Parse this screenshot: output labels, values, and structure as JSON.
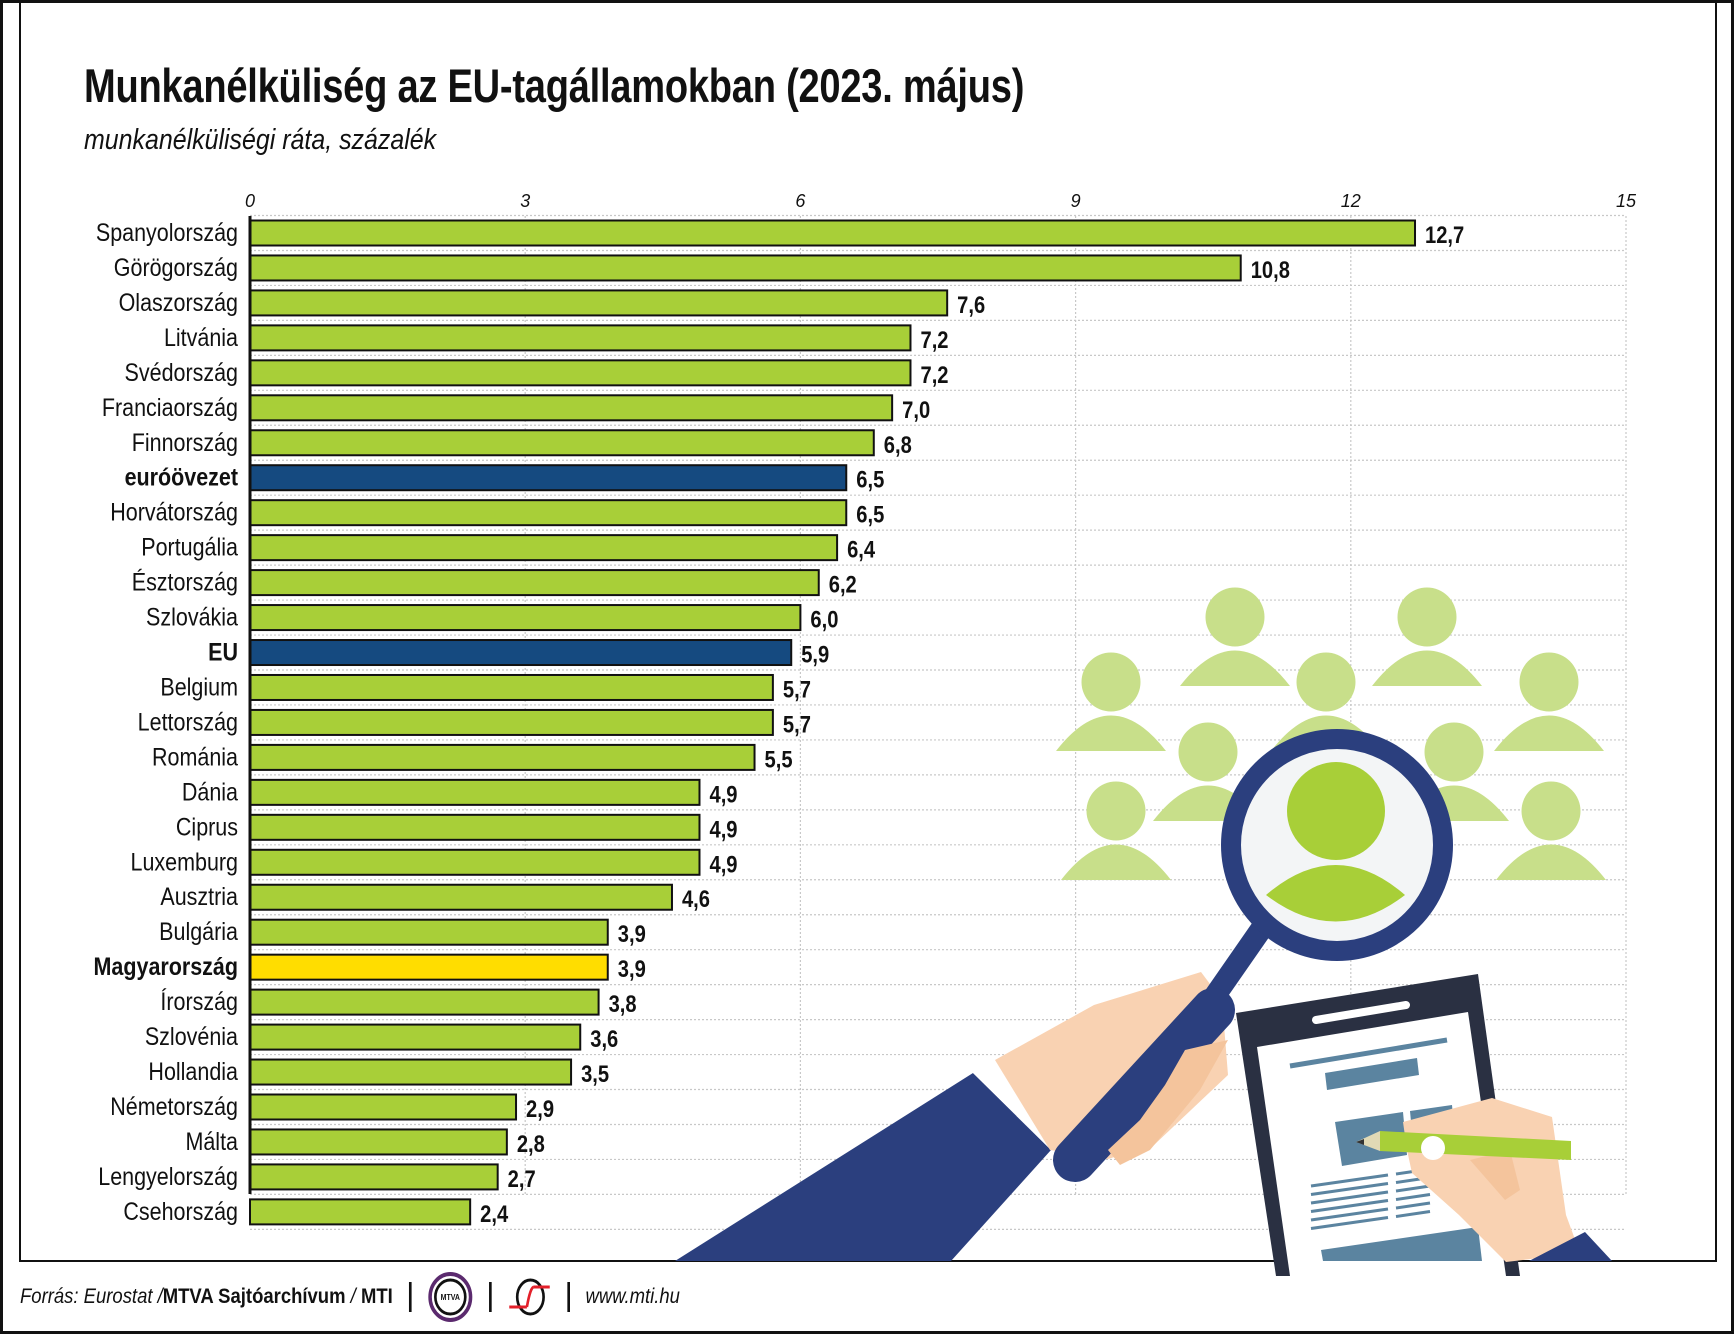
{
  "header": {
    "title": "Munkanélküliség az EU-tagállamokban (2023. május)",
    "subtitle": "munkanélküliségi ráta, százalék"
  },
  "chart_data": {
    "type": "bar",
    "orientation": "horizontal",
    "title": "Munkanélküliség az EU-tagállamokban (2023. május)",
    "subtitle": "munkanélküliségi ráta, százalék",
    "xlim": [
      0,
      15
    ],
    "xticks": [
      "0",
      "3",
      "6",
      "9",
      "12",
      "15"
    ],
    "xtick_values": [
      0,
      3,
      6,
      9,
      12,
      15
    ],
    "grid": true,
    "categories": [
      "Spanyolország",
      "Görögország",
      "Olaszország",
      "Litvánia",
      "Svédország",
      "Franciaország",
      "Finnország",
      "euróövezet",
      "Horvátország",
      "Portugália",
      "Észtország",
      "Szlovákia",
      "EU",
      "Belgium",
      "Lettország",
      "Románia",
      "Dánia",
      "Ciprus",
      "Luxemburg",
      "Ausztria",
      "Bulgária",
      "Magyarország",
      "Írország",
      "Szlovénia",
      "Hollandia",
      "Németország",
      "Málta",
      "Lengyelország",
      "Csehország"
    ],
    "values": [
      12.7,
      10.8,
      7.6,
      7.2,
      7.2,
      7.0,
      6.8,
      6.5,
      6.5,
      6.4,
      6.2,
      6.0,
      5.9,
      5.7,
      5.7,
      5.5,
      4.9,
      4.9,
      4.9,
      4.6,
      3.9,
      3.9,
      3.8,
      3.6,
      3.5,
      2.9,
      2.8,
      2.7,
      2.4
    ],
    "value_labels": [
      "12,7",
      "10,8",
      "7,6",
      "7,2",
      "7,2",
      "7,0",
      "6,8",
      "6,5",
      "6,5",
      "6,4",
      "6,2",
      "6,0",
      "5,9",
      "5,7",
      "5,7",
      "5,5",
      "4,9",
      "4,9",
      "4,9",
      "4,6",
      "3,9",
      "3,9",
      "3,8",
      "3,6",
      "3,5",
      "2,9",
      "2,8",
      "2,7",
      "2,4"
    ],
    "highlight": {
      "euróövezet": "aggregate",
      "EU": "aggregate",
      "Magyarország": "hungary"
    },
    "colors": {
      "default": "#a8cf38",
      "aggregate": "#154a80",
      "hungary": "#ffdd00"
    }
  },
  "footer": {
    "source_prefix": "Forrás: Eurostat / ",
    "source_bold": "MTVA Sajtóarchívum",
    "source_sep": " / ",
    "source_mti": "MTI",
    "mtva_logo_text": "MTVA",
    "url": "www.mti.hu"
  }
}
